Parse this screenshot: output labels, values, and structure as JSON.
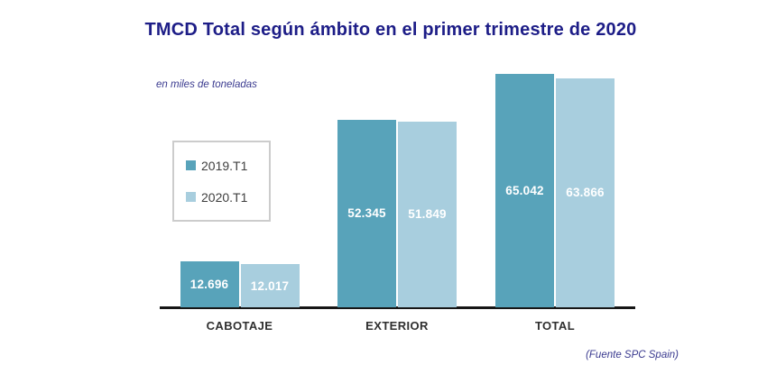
{
  "chart_data": {
    "type": "bar",
    "title": "TMCD Total según ámbito en el primer trimestre de 2020",
    "units_note": "en miles de toneladas",
    "source_note": "(Fuente SPC Spain)",
    "categories": [
      "CABOTAJE",
      "EXTERIOR",
      "TOTAL"
    ],
    "series": [
      {
        "name": "2019.T1",
        "color": "#58a3ba",
        "values": [
          12696,
          52345,
          65042
        ],
        "labels": [
          "12.696",
          "52.345",
          "65.042"
        ]
      },
      {
        "name": "2020.T1",
        "color": "#a8cede",
        "values": [
          12017,
          51849,
          63866
        ],
        "labels": [
          "12.017",
          "51.849",
          "63.866"
        ]
      }
    ],
    "ylim": [
      0,
      65042
    ],
    "y_axis_visible": false,
    "grid": false,
    "legend_position": "left",
    "value_labels": "inside-center",
    "colors": {
      "title": "#1d1d87",
      "notes": "#3a3a8f",
      "axis_line": "#161616",
      "category_labels": "#2f2f2f",
      "legend_text": "#3f3f3f",
      "legend_border": "#cccccc",
      "background": "#ffffff"
    }
  }
}
